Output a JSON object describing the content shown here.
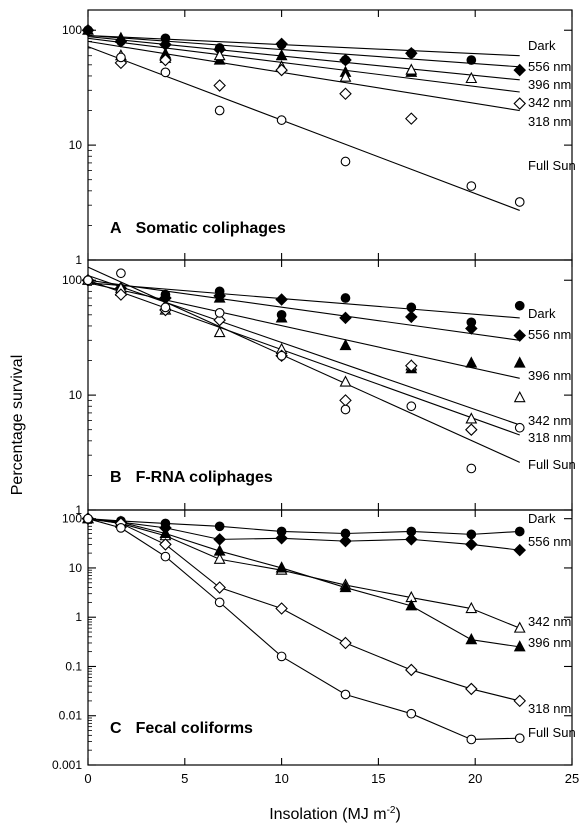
{
  "figure": {
    "ylabel": "Percentage survival",
    "xlabel": "Insolation (MJ m",
    "xlabel_sup": "-2",
    "xlabel_close": ")",
    "xticks": [
      "0",
      "5",
      "10",
      "15",
      "20",
      "25"
    ]
  },
  "chart_data": [
    {
      "type": "scatter",
      "panel_letter": "A",
      "title": "Somatic coliphages",
      "yscale": "log",
      "ylim": [
        1,
        150
      ],
      "xlim": [
        0,
        25
      ],
      "yticks": [
        "1",
        "10",
        "100"
      ],
      "series": [
        {
          "name": "Dark",
          "marker": "filled-circle",
          "x": [
            0,
            1.7,
            4,
            6.8,
            10,
            13.3,
            16.7,
            19.8
          ],
          "y": [
            100,
            80,
            85,
            70,
            75,
            55,
            63,
            55
          ],
          "fit": [
            [
              0,
              90
            ],
            [
              22.3,
              60
            ]
          ]
        },
        {
          "name": "556 nm",
          "marker": "filled-diamond",
          "x": [
            0,
            1.7,
            4,
            6.8,
            10,
            13.3,
            16.7,
            22.3
          ],
          "y": [
            100,
            80,
            75,
            68,
            76,
            55,
            63,
            45
          ],
          "fit": [
            [
              0,
              90
            ],
            [
              22.3,
              48
            ]
          ]
        },
        {
          "name": "396 nm",
          "marker": "filled-triangle",
          "x": [
            0,
            1.7,
            4,
            6.8,
            10,
            13.3,
            16.7
          ],
          "y": [
            100,
            85,
            62,
            55,
            60,
            43,
            43
          ],
          "fit": [
            [
              0,
              88
            ],
            [
              22.3,
              37
            ]
          ]
        },
        {
          "name": "342 nm",
          "marker": "open-triangle",
          "x": [
            1.7,
            4,
            6.8,
            10,
            13.3,
            16.7,
            19.8
          ],
          "y": [
            60,
            57,
            60,
            48,
            39,
            45,
            38
          ],
          "fit": [
            [
              0,
              85
            ],
            [
              22.3,
              29
            ]
          ]
        },
        {
          "name": "318 nm",
          "marker": "open-diamond",
          "x": [
            1.7,
            4,
            6.8,
            10,
            13.3,
            16.7,
            22.3
          ],
          "y": [
            52,
            55,
            33,
            45,
            28,
            17,
            23
          ],
          "fit": [
            [
              0,
              80
            ],
            [
              22.3,
              20
            ]
          ]
        },
        {
          "name": "Full Sun",
          "marker": "open-circle",
          "x": [
            1.7,
            4,
            6.8,
            10,
            13.3,
            19.8,
            22.3
          ],
          "y": [
            58,
            43,
            20,
            16.5,
            7.2,
            4.4,
            3.2
          ],
          "fit": [
            [
              0,
              72
            ],
            [
              22.3,
              2.7
            ]
          ]
        }
      ]
    },
    {
      "type": "scatter",
      "panel_letter": "B",
      "title": "F-RNA coliphages",
      "yscale": "log",
      "ylim": [
        1,
        150
      ],
      "xlim": [
        0,
        25
      ],
      "yticks": [
        "1",
        "10",
        "100"
      ],
      "series": [
        {
          "name": "Dark",
          "marker": "filled-circle",
          "x": [
            0,
            1.7,
            4,
            6.8,
            10,
            13.3,
            16.7,
            19.8,
            22.3
          ],
          "y": [
            100,
            85,
            75,
            80,
            50,
            70,
            58,
            43,
            60
          ],
          "fit": [
            [
              0,
              95
            ],
            [
              22.3,
              47
            ]
          ]
        },
        {
          "name": "556 nm",
          "marker": "filled-diamond",
          "x": [
            0,
            1.7,
            4,
            6.8,
            10,
            13.3,
            16.7,
            19.8,
            22.3
          ],
          "y": [
            100,
            85,
            70,
            73,
            68,
            47,
            48,
            38,
            33
          ],
          "fit": [
            [
              0,
              100
            ],
            [
              22.3,
              30
            ]
          ]
        },
        {
          "name": "396 nm",
          "marker": "filled-triangle",
          "x": [
            0,
            1.7,
            4,
            6.8,
            10,
            13.3,
            16.7,
            19.8,
            22.3
          ],
          "y": [
            100,
            80,
            60,
            70,
            47,
            27,
            17,
            19,
            19
          ],
          "fit": [
            [
              0,
              95
            ],
            [
              22.3,
              14
            ]
          ]
        },
        {
          "name": "342 nm",
          "marker": "open-triangle",
          "x": [
            0,
            1.7,
            4,
            6.8,
            10,
            13.3,
            16.7,
            19.8,
            22.3
          ],
          "y": [
            100,
            85,
            55,
            35,
            25,
            13,
            18,
            6.2,
            9.5
          ],
          "fit": [
            [
              0,
              110
            ],
            [
              22.3,
              5.5
            ]
          ]
        },
        {
          "name": "318 nm",
          "marker": "open-diamond",
          "x": [
            0,
            1.7,
            4,
            6.8,
            10,
            13.3,
            16.7,
            19.8
          ],
          "y": [
            100,
            75,
            55,
            45,
            22,
            9,
            18,
            5
          ],
          "fit": [
            [
              0,
              100
            ],
            [
              22.3,
              4.5
            ]
          ]
        },
        {
          "name": "Full Sun",
          "marker": "open-circle",
          "x": [
            0,
            1.7,
            4,
            6.8,
            10,
            13.3,
            16.7,
            19.8,
            22.3
          ],
          "y": [
            100,
            115,
            58,
            52,
            22,
            7.5,
            8,
            2.3,
            5.2
          ],
          "fit": [
            [
              0,
              130
            ],
            [
              22.3,
              2.6
            ]
          ]
        }
      ]
    },
    {
      "type": "line",
      "panel_letter": "C",
      "title": "Fecal coliforms",
      "yscale": "log",
      "ylim": [
        0.001,
        150
      ],
      "xlim": [
        0,
        25
      ],
      "yticks": [
        "0.001",
        "0.01",
        "0.1",
        "1",
        "10",
        "100"
      ],
      "series": [
        {
          "name": "Dark",
          "marker": "filled-circle",
          "x": [
            0,
            1.7,
            4,
            6.8,
            10,
            13.3,
            16.7,
            19.8,
            22.3
          ],
          "y": [
            100,
            90,
            80,
            70,
            55,
            50,
            55,
            48,
            55
          ]
        },
        {
          "name": "556 nm",
          "marker": "filled-diamond",
          "x": [
            0,
            1.7,
            4,
            6.8,
            10,
            13.3,
            16.7,
            19.8,
            22.3
          ],
          "y": [
            100,
            85,
            65,
            38,
            40,
            35,
            38,
            30,
            23
          ]
        },
        {
          "name": "342 nm",
          "marker": "open-triangle",
          "x": [
            0,
            1.7,
            4,
            6.8,
            10,
            13.3,
            16.7,
            19.8,
            22.3
          ],
          "y": [
            100,
            80,
            45,
            15,
            9,
            4.5,
            2.5,
            1.5,
            0.6
          ]
        },
        {
          "name": "396 nm",
          "marker": "filled-triangle",
          "x": [
            0,
            1.7,
            4,
            6.8,
            10,
            13.3,
            16.7,
            19.8,
            22.3
          ],
          "y": [
            100,
            85,
            50,
            22,
            10,
            4,
            1.7,
            0.35,
            0.25
          ]
        },
        {
          "name": "318 nm",
          "marker": "open-diamond",
          "x": [
            0,
            1.7,
            4,
            6.8,
            10,
            13.3,
            16.7,
            19.8,
            22.3
          ],
          "y": [
            100,
            80,
            30,
            4,
            1.5,
            0.3,
            0.085,
            0.035,
            0.02
          ]
        },
        {
          "name": "Full Sun",
          "marker": "open-circle",
          "x": [
            0,
            1.7,
            4,
            6.8,
            10,
            13.3,
            16.7,
            19.8,
            22.3
          ],
          "y": [
            100,
            65,
            17,
            2,
            0.16,
            0.027,
            0.011,
            0.0033,
            0.0035
          ]
        }
      ]
    }
  ]
}
